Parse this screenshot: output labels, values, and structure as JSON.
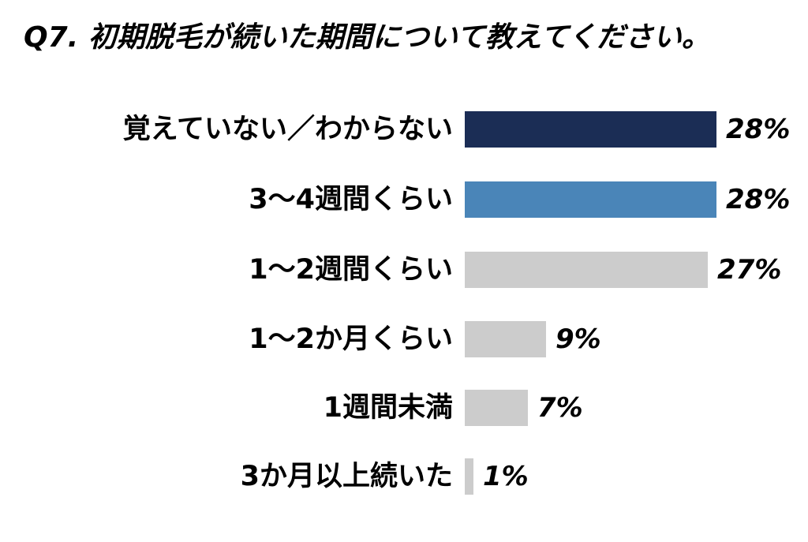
{
  "title": "Q7. 初期脱毛が続いた期間について教えてください。",
  "chart_data": {
    "type": "bar",
    "orientation": "horizontal",
    "title": "Q7. 初期脱毛が続いた期間について教えてください。",
    "xlabel": "",
    "ylabel": "",
    "categories": [
      "覚えていない／わからない",
      "3〜4週間くらい",
      "1〜2週間くらい",
      "1〜2か月くらい",
      "1週間未満",
      "3か月以上続いた"
    ],
    "values": [
      28,
      28,
      27,
      9,
      7,
      1
    ],
    "value_labels": [
      "28%",
      "28%",
      "27%",
      "9%",
      "7%",
      "1%"
    ],
    "colors": [
      "#1b2d55",
      "#4a85b8",
      "#cccccc",
      "#cccccc",
      "#cccccc",
      "#cccccc"
    ],
    "grid": false,
    "legend": "none",
    "unit": "%"
  },
  "rows": [
    {
      "label": "覚えていない／わからない",
      "value": "28%"
    },
    {
      "label": "3〜4週間くらい",
      "value": "28%"
    },
    {
      "label": "1〜2週間くらい",
      "value": "27%"
    },
    {
      "label": "1〜2か月くらい",
      "value": "9%"
    },
    {
      "label": "1週間未満",
      "value": "7%"
    },
    {
      "label": "3か月以上続いた",
      "value": "1%"
    }
  ]
}
